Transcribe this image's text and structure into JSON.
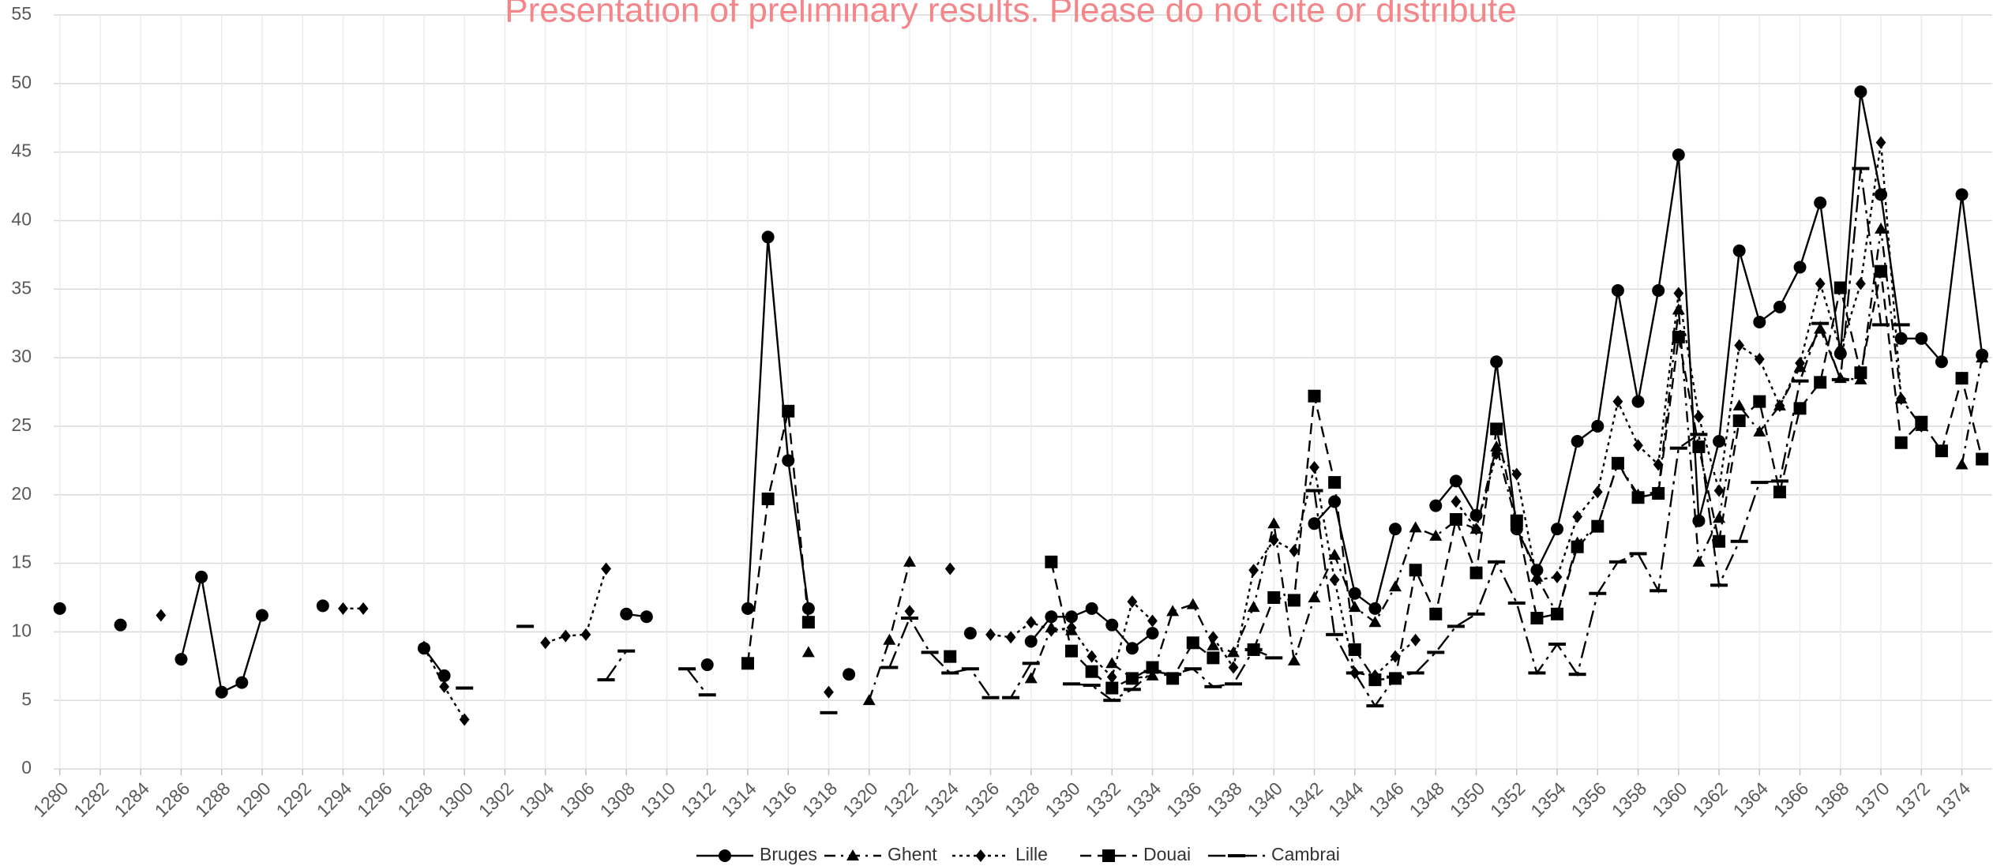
{
  "chart_data": {
    "type": "line",
    "title": "Presentation of preliminary results. Please do not cite or distribute",
    "x": [
      1280,
      1281,
      1282,
      1283,
      1284,
      1285,
      1286,
      1287,
      1288,
      1289,
      1290,
      1291,
      1292,
      1293,
      1294,
      1295,
      1296,
      1297,
      1298,
      1299,
      1300,
      1301,
      1302,
      1303,
      1304,
      1305,
      1306,
      1307,
      1308,
      1309,
      1310,
      1311,
      1312,
      1313,
      1314,
      1315,
      1316,
      1317,
      1318,
      1319,
      1320,
      1321,
      1322,
      1323,
      1324,
      1325,
      1326,
      1327,
      1328,
      1329,
      1330,
      1331,
      1332,
      1333,
      1334,
      1335,
      1336,
      1337,
      1338,
      1339,
      1340,
      1341,
      1342,
      1343,
      1344,
      1345,
      1346,
      1347,
      1348,
      1349,
      1350,
      1351,
      1352,
      1353,
      1354,
      1355,
      1356,
      1357,
      1358,
      1359,
      1360,
      1361,
      1362,
      1363,
      1364,
      1365,
      1366,
      1367,
      1368,
      1369,
      1370,
      1371,
      1372,
      1373,
      1374,
      1375
    ],
    "xlim": [
      1279.7,
      1375.5
    ],
    "xticks": [
      1280,
      1282,
      1284,
      1286,
      1288,
      1290,
      1292,
      1294,
      1296,
      1298,
      1300,
      1302,
      1304,
      1306,
      1308,
      1310,
      1312,
      1314,
      1316,
      1318,
      1320,
      1322,
      1324,
      1326,
      1328,
      1330,
      1332,
      1334,
      1336,
      1338,
      1340,
      1342,
      1344,
      1346,
      1348,
      1350,
      1352,
      1354,
      1356,
      1358,
      1360,
      1362,
      1364,
      1366,
      1368,
      1370,
      1372,
      1374
    ],
    "ylim": [
      0,
      55
    ],
    "yticks": [
      0,
      5,
      10,
      15,
      20,
      25,
      30,
      35,
      40,
      45,
      50,
      55
    ],
    "grid": true,
    "legend": "bottom",
    "series": [
      {
        "name": "Bruges",
        "color": "#000000",
        "marker": "circle",
        "dash": "solid",
        "values": [
          11.7,
          null,
          null,
          10.5,
          null,
          null,
          8.0,
          14.0,
          5.6,
          6.3,
          11.2,
          null,
          null,
          11.9,
          null,
          null,
          null,
          null,
          8.8,
          6.8,
          null,
          null,
          null,
          null,
          null,
          null,
          null,
          null,
          11.3,
          11.1,
          null,
          null,
          7.6,
          null,
          11.7,
          38.8,
          22.5,
          11.7,
          null,
          6.9,
          null,
          null,
          null,
          null,
          null,
          9.9,
          null,
          null,
          9.3,
          11.1,
          11.1,
          11.7,
          10.5,
          8.8,
          9.9,
          null,
          null,
          null,
          null,
          null,
          null,
          null,
          17.9,
          19.5,
          12.8,
          11.7,
          17.5,
          null,
          19.2,
          21.0,
          18.5,
          29.7,
          17.5,
          14.5,
          17.5,
          23.9,
          25.0,
          34.9,
          26.8,
          34.9,
          44.8,
          18.1,
          23.9,
          37.8,
          32.6,
          33.7,
          36.6,
          41.3,
          30.3,
          49.4,
          41.9,
          31.4,
          31.4,
          29.7,
          41.9,
          30.2
        ]
      },
      {
        "name": "Ghent",
        "color": "#000000",
        "marker": "triangle",
        "dash": "dashdot",
        "values": [
          null,
          null,
          null,
          null,
          null,
          null,
          null,
          null,
          null,
          null,
          null,
          null,
          null,
          null,
          null,
          null,
          null,
          null,
          null,
          null,
          null,
          null,
          null,
          null,
          null,
          null,
          null,
          null,
          null,
          null,
          null,
          null,
          null,
          null,
          null,
          null,
          null,
          8.5,
          null,
          null,
          5.0,
          9.4,
          15.1,
          null,
          null,
          null,
          null,
          null,
          6.6,
          10.3,
          10.1,
          null,
          7.7,
          6.6,
          6.8,
          11.5,
          12.0,
          9.0,
          8.5,
          11.8,
          17.9,
          7.9,
          12.5,
          15.6,
          11.8,
          10.7,
          13.3,
          17.6,
          17.0,
          18.1,
          17.5,
          23.5,
          17.9,
          14.0,
          11.3,
          16.5,
          17.7,
          22.3,
          20.0,
          20.2,
          33.5,
          15.1,
          18.3,
          26.5,
          24.6,
          26.5,
          29.3,
          32.1,
          28.5,
          28.4,
          39.4,
          27.0,
          25.0,
          null,
          22.2,
          30.0
        ]
      },
      {
        "name": "Lille",
        "color": "#000000",
        "marker": "diamond",
        "dash": "dot",
        "values": [
          null,
          null,
          null,
          null,
          null,
          11.2,
          null,
          null,
          null,
          null,
          null,
          null,
          null,
          null,
          11.7,
          11.7,
          null,
          null,
          8.9,
          6.0,
          3.6,
          null,
          null,
          null,
          9.2,
          9.7,
          9.8,
          14.6,
          null,
          null,
          null,
          null,
          null,
          null,
          null,
          null,
          null,
          null,
          5.6,
          null,
          null,
          null,
          11.5,
          null,
          14.6,
          null,
          9.8,
          9.6,
          10.7,
          10.1,
          10.3,
          8.2,
          6.7,
          12.2,
          10.8,
          null,
          null,
          9.6,
          7.4,
          14.5,
          16.7,
          15.9,
          22.0,
          13.8,
          7.0,
          6.8,
          8.2,
          9.4,
          null,
          19.5,
          17.5,
          23.0,
          21.5,
          13.8,
          14.0,
          18.4,
          20.2,
          26.8,
          23.6,
          22.2,
          34.7,
          25.7,
          20.3,
          30.9,
          29.9,
          26.5,
          29.6,
          35.4,
          30.6,
          35.4,
          45.7,
          27.0,
          25.0,
          null,
          null,
          30.0
        ]
      },
      {
        "name": "Douai",
        "color": "#000000",
        "marker": "square",
        "dash": "dash",
        "values": [
          null,
          null,
          null,
          null,
          null,
          null,
          null,
          null,
          null,
          null,
          null,
          null,
          null,
          null,
          null,
          null,
          null,
          null,
          null,
          null,
          null,
          null,
          null,
          null,
          null,
          null,
          null,
          null,
          null,
          null,
          null,
          null,
          null,
          null,
          7.7,
          19.7,
          26.1,
          10.7,
          null,
          null,
          null,
          null,
          null,
          null,
          8.2,
          null,
          null,
          null,
          null,
          15.1,
          8.6,
          7.1,
          5.9,
          6.6,
          7.4,
          6.6,
          9.2,
          8.1,
          null,
          8.7,
          12.5,
          12.3,
          27.2,
          20.9,
          8.7,
          6.5,
          6.6,
          14.5,
          11.3,
          18.2,
          14.3,
          24.8,
          18.1,
          11.0,
          11.3,
          16.2,
          17.7,
          22.3,
          19.8,
          20.1,
          31.5,
          23.5,
          16.6,
          25.4,
          26.8,
          20.2,
          26.3,
          28.2,
          35.1,
          28.9,
          36.3,
          23.8,
          25.3,
          23.2,
          28.5,
          22.6
        ]
      },
      {
        "name": "Cambrai",
        "color": "#000000",
        "marker": "dash",
        "dash": "longdashdot",
        "values": [
          null,
          null,
          null,
          null,
          null,
          null,
          null,
          null,
          null,
          null,
          null,
          null,
          null,
          null,
          null,
          null,
          null,
          null,
          null,
          null,
          5.9,
          null,
          null,
          10.4,
          null,
          null,
          null,
          6.5,
          8.6,
          null,
          null,
          7.3,
          5.4,
          null,
          null,
          null,
          null,
          null,
          4.1,
          null,
          null,
          7.4,
          11.0,
          8.5,
          7.0,
          7.3,
          5.2,
          5.2,
          7.7,
          null,
          6.2,
          6.1,
          5.0,
          5.8,
          7.1,
          6.9,
          7.3,
          6.0,
          6.2,
          8.7,
          8.1,
          null,
          20.3,
          9.8,
          7.0,
          4.6,
          6.7,
          7.0,
          8.5,
          10.4,
          11.3,
          15.1,
          12.1,
          7.0,
          9.1,
          6.9,
          12.8,
          15.1,
          15.7,
          13.0,
          23.4,
          24.4,
          13.4,
          16.6,
          20.9,
          21.0,
          28.3,
          32.5,
          28.4,
          43.8,
          32.4,
          32.4,
          null,
          null,
          null,
          null
        ]
      }
    ]
  }
}
